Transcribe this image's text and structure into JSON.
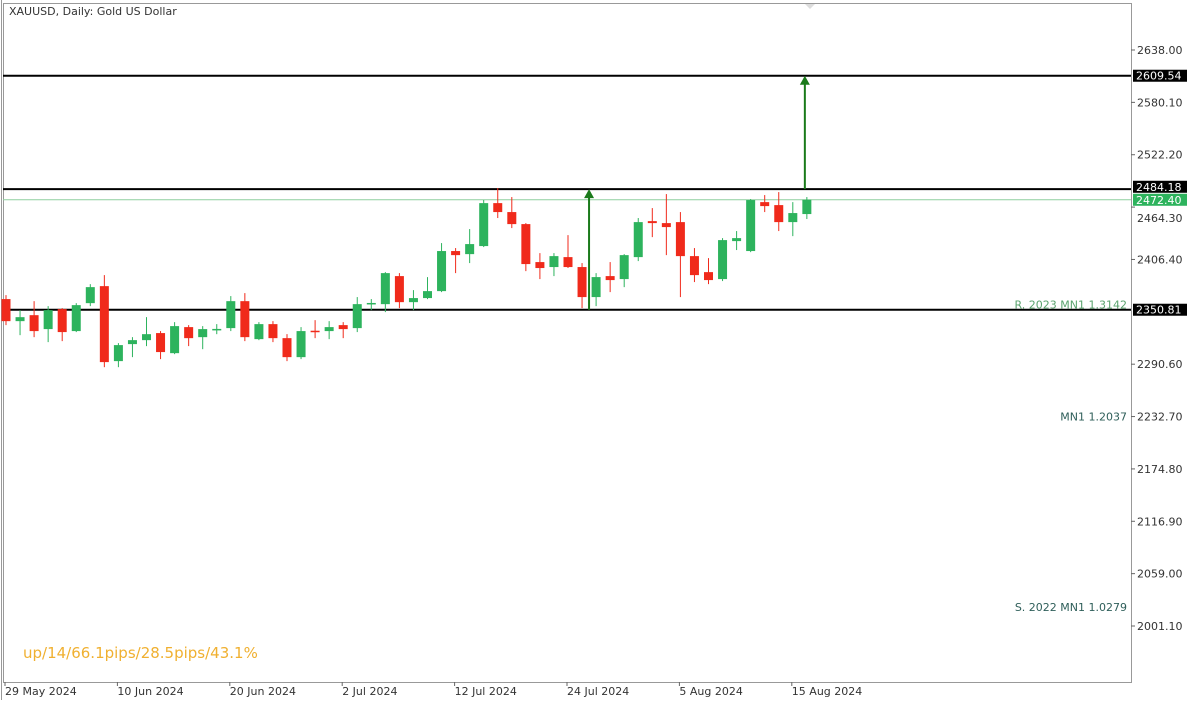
{
  "chart_data": {
    "type": "candlestick",
    "title": "XAUUSD, Daily:  Gold US Dollar",
    "colors": {
      "bull": "#2db35d",
      "bear": "#f02a1b",
      "bid_line": "#8fcf9f",
      "level_line": "#000000",
      "arrow": "#1a7a1a",
      "stats_text": "#f0b030",
      "resistance_label": "#5aa36e",
      "level_label": "#2f5f5a"
    },
    "ylim": [
      1970,
      2690
    ],
    "y_ticks": [
      "2638.00",
      "2580.10",
      "2522.20",
      "2464.30",
      "2406.40",
      "2290.60",
      "2232.70",
      "2174.80",
      "2116.90",
      "2059.00",
      "2001.10"
    ],
    "x_ticks": [
      "29 May 2024",
      "10 Jun 2024",
      "20 Jun 2024",
      "2 Jul 2024",
      "12 Jul 2024",
      "24 Jul 2024",
      "5 Aug 2024",
      "15 Aug 2024"
    ],
    "columns": [
      "date",
      "open",
      "high",
      "low",
      "close"
    ],
    "candles": [
      [
        "29 May 2024",
        2362.6,
        2367.0,
        2333.8,
        2338.2
      ],
      [
        "30 May 2024",
        2338.2,
        2350.4,
        2322.7,
        2342.6
      ],
      [
        "31 May 2024",
        2344.8,
        2360.3,
        2320.5,
        2327.2
      ],
      [
        "3 Jun 2024",
        2329.4,
        2354.8,
        2315.0,
        2350.4
      ],
      [
        "4 Jun 2024",
        2351.5,
        2352.6,
        2316.1,
        2326.1
      ],
      [
        "5 Jun 2024",
        2327.2,
        2358.1,
        2326.1,
        2355.9
      ],
      [
        "6 Jun 2024",
        2358.1,
        2379.1,
        2354.8,
        2375.8
      ],
      [
        "7 Jun 2024",
        2376.9,
        2389.1,
        2287.3,
        2292.9
      ],
      [
        "10 Jun 2024",
        2294.0,
        2313.9,
        2287.3,
        2311.7
      ],
      [
        "11 Jun 2024",
        2312.8,
        2320.5,
        2298.4,
        2317.2
      ],
      [
        "12 Jun 2024",
        2317.2,
        2342.6,
        2310.6,
        2323.8
      ],
      [
        "13 Jun 2024",
        2325.0,
        2327.2,
        2296.2,
        2304.0
      ],
      [
        "14 Jun 2024",
        2302.8,
        2337.1,
        2301.7,
        2332.7
      ],
      [
        "17 Jun 2024",
        2331.6,
        2333.8,
        2310.6,
        2319.4
      ],
      [
        "18 Jun 2024",
        2320.5,
        2332.7,
        2307.2,
        2329.4
      ],
      [
        "19 Jun 2024",
        2329.0,
        2334.9,
        2323.8,
        2329.6
      ],
      [
        "20 Jun 2024",
        2330.5,
        2365.9,
        2327.2,
        2360.3
      ],
      [
        "21 Jun 2024",
        2360.3,
        2369.2,
        2316.1,
        2320.5
      ],
      [
        "24 Jun 2024",
        2318.3,
        2337.1,
        2317.2,
        2334.9
      ],
      [
        "25 Jun 2024",
        2334.9,
        2338.2,
        2315.0,
        2319.4
      ],
      [
        "26 Jun 2024",
        2319.4,
        2323.8,
        2294.0,
        2298.4
      ],
      [
        "27 Jun 2024",
        2298.4,
        2331.6,
        2296.2,
        2327.2
      ],
      [
        "28 Jun 2024",
        2327.6,
        2339.3,
        2319.4,
        2327.0
      ],
      [
        "1 Jul 2024",
        2327.2,
        2338.2,
        2318.3,
        2331.6
      ],
      [
        "2 Jul 2024",
        2333.8,
        2337.1,
        2319.4,
        2329.4
      ],
      [
        "3 Jul 2024",
        2330.5,
        2364.8,
        2326.1,
        2357.0
      ],
      [
        "4 Jul 2024",
        2357.8,
        2362.6,
        2350.4,
        2358.3
      ],
      [
        "5 Jul 2024",
        2357.0,
        2392.4,
        2348.2,
        2391.3
      ],
      [
        "8 Jul 2024",
        2388.0,
        2391.3,
        2352.6,
        2359.2
      ],
      [
        "9 Jul 2024",
        2359.2,
        2372.5,
        2350.4,
        2363.7
      ],
      [
        "10 Jul 2024",
        2363.7,
        2386.9,
        2362.6,
        2371.4
      ],
      [
        "11 Jul 2024",
        2371.4,
        2424.5,
        2370.3,
        2415.7
      ],
      [
        "12 Jul 2024",
        2415.7,
        2419.0,
        2391.3,
        2411.2
      ],
      [
        "15 Jul 2024",
        2412.3,
        2440.0,
        2402.4,
        2423.4
      ],
      [
        "16 Jul 2024",
        2421.2,
        2472.1,
        2420.1,
        2468.7
      ],
      [
        "17 Jul 2024",
        2468.7,
        2485.4,
        2452.2,
        2458.8
      ],
      [
        "18 Jul 2024",
        2458.8,
        2475.4,
        2441.1,
        2445.5
      ],
      [
        "19 Jul 2024",
        2445.5,
        2446.6,
        2393.5,
        2401.3
      ],
      [
        "22 Jul 2024",
        2403.5,
        2413.4,
        2384.7,
        2396.9
      ],
      [
        "23 Jul 2024",
        2398.0,
        2413.4,
        2388.0,
        2410.1
      ],
      [
        "24 Jul 2024",
        2409.0,
        2433.3,
        2396.9,
        2398.0
      ],
      [
        "25 Jul 2024",
        2398.0,
        2402.4,
        2352.6,
        2364.8
      ],
      [
        "26 Jul 2024",
        2364.8,
        2391.3,
        2354.8,
        2386.9
      ],
      [
        "29 Jul 2024",
        2388.0,
        2403.5,
        2370.3,
        2383.6
      ],
      [
        "30 Jul 2024",
        2384.7,
        2412.3,
        2375.8,
        2411.2
      ],
      [
        "31 Jul 2024",
        2409.0,
        2452.2,
        2404.6,
        2447.7
      ],
      [
        "1 Aug 2024",
        2448.8,
        2463.2,
        2431.1,
        2446.6
      ],
      [
        "2 Aug 2024",
        2446.6,
        2478.7,
        2411.2,
        2442.2
      ],
      [
        "5 Aug 2024",
        2447.7,
        2458.8,
        2364.8,
        2410.1
      ],
      [
        "6 Aug 2024",
        2410.1,
        2419.0,
        2381.4,
        2389.1
      ],
      [
        "7 Aug 2024",
        2392.4,
        2407.9,
        2379.1,
        2383.6
      ],
      [
        "8 Aug 2024",
        2384.7,
        2430.0,
        2382.5,
        2427.8
      ],
      [
        "9 Aug 2024",
        2426.7,
        2437.8,
        2416.8,
        2430.0
      ],
      [
        "12 Aug 2024",
        2415.7,
        2473.2,
        2414.5,
        2472.1
      ],
      [
        "13 Aug 2024",
        2469.8,
        2477.6,
        2458.8,
        2465.4
      ],
      [
        "14 Aug 2024",
        2466.5,
        2480.9,
        2437.8,
        2447.7
      ],
      [
        "15 Aug 2024",
        2447.7,
        2469.8,
        2432.2,
        2457.7
      ],
      [
        "16 Aug 2024",
        2456.6,
        2475.4,
        2451.1,
        2472.4
      ]
    ],
    "levels": [
      {
        "price": 2609.54,
        "tag": "2609.54"
      },
      {
        "price": 2484.18,
        "tag": "2484.18"
      },
      {
        "price": 2350.81,
        "tag": "2350.81"
      }
    ],
    "bid": {
      "price": 2472.4,
      "tag": "2472.40"
    },
    "arrows": [
      {
        "date": "25 Jul 2024",
        "from": 2350.81,
        "to": 2484.18
      },
      {
        "date": "16 Aug 2024",
        "from": 2484.18,
        "to": 2609.54
      }
    ],
    "annotations": [
      {
        "text": "R. 2023 MN1 1.3142",
        "price": 2356.5,
        "style": "resistance"
      },
      {
        "text": "MN1 1.2037",
        "price": 2232.7,
        "style": "level"
      },
      {
        "text": "S. 2022 MN1 1.0279",
        "price": 2022.0,
        "style": "level"
      }
    ],
    "stats_text": "up/14/66.1pips/28.5pips/43.1%"
  }
}
